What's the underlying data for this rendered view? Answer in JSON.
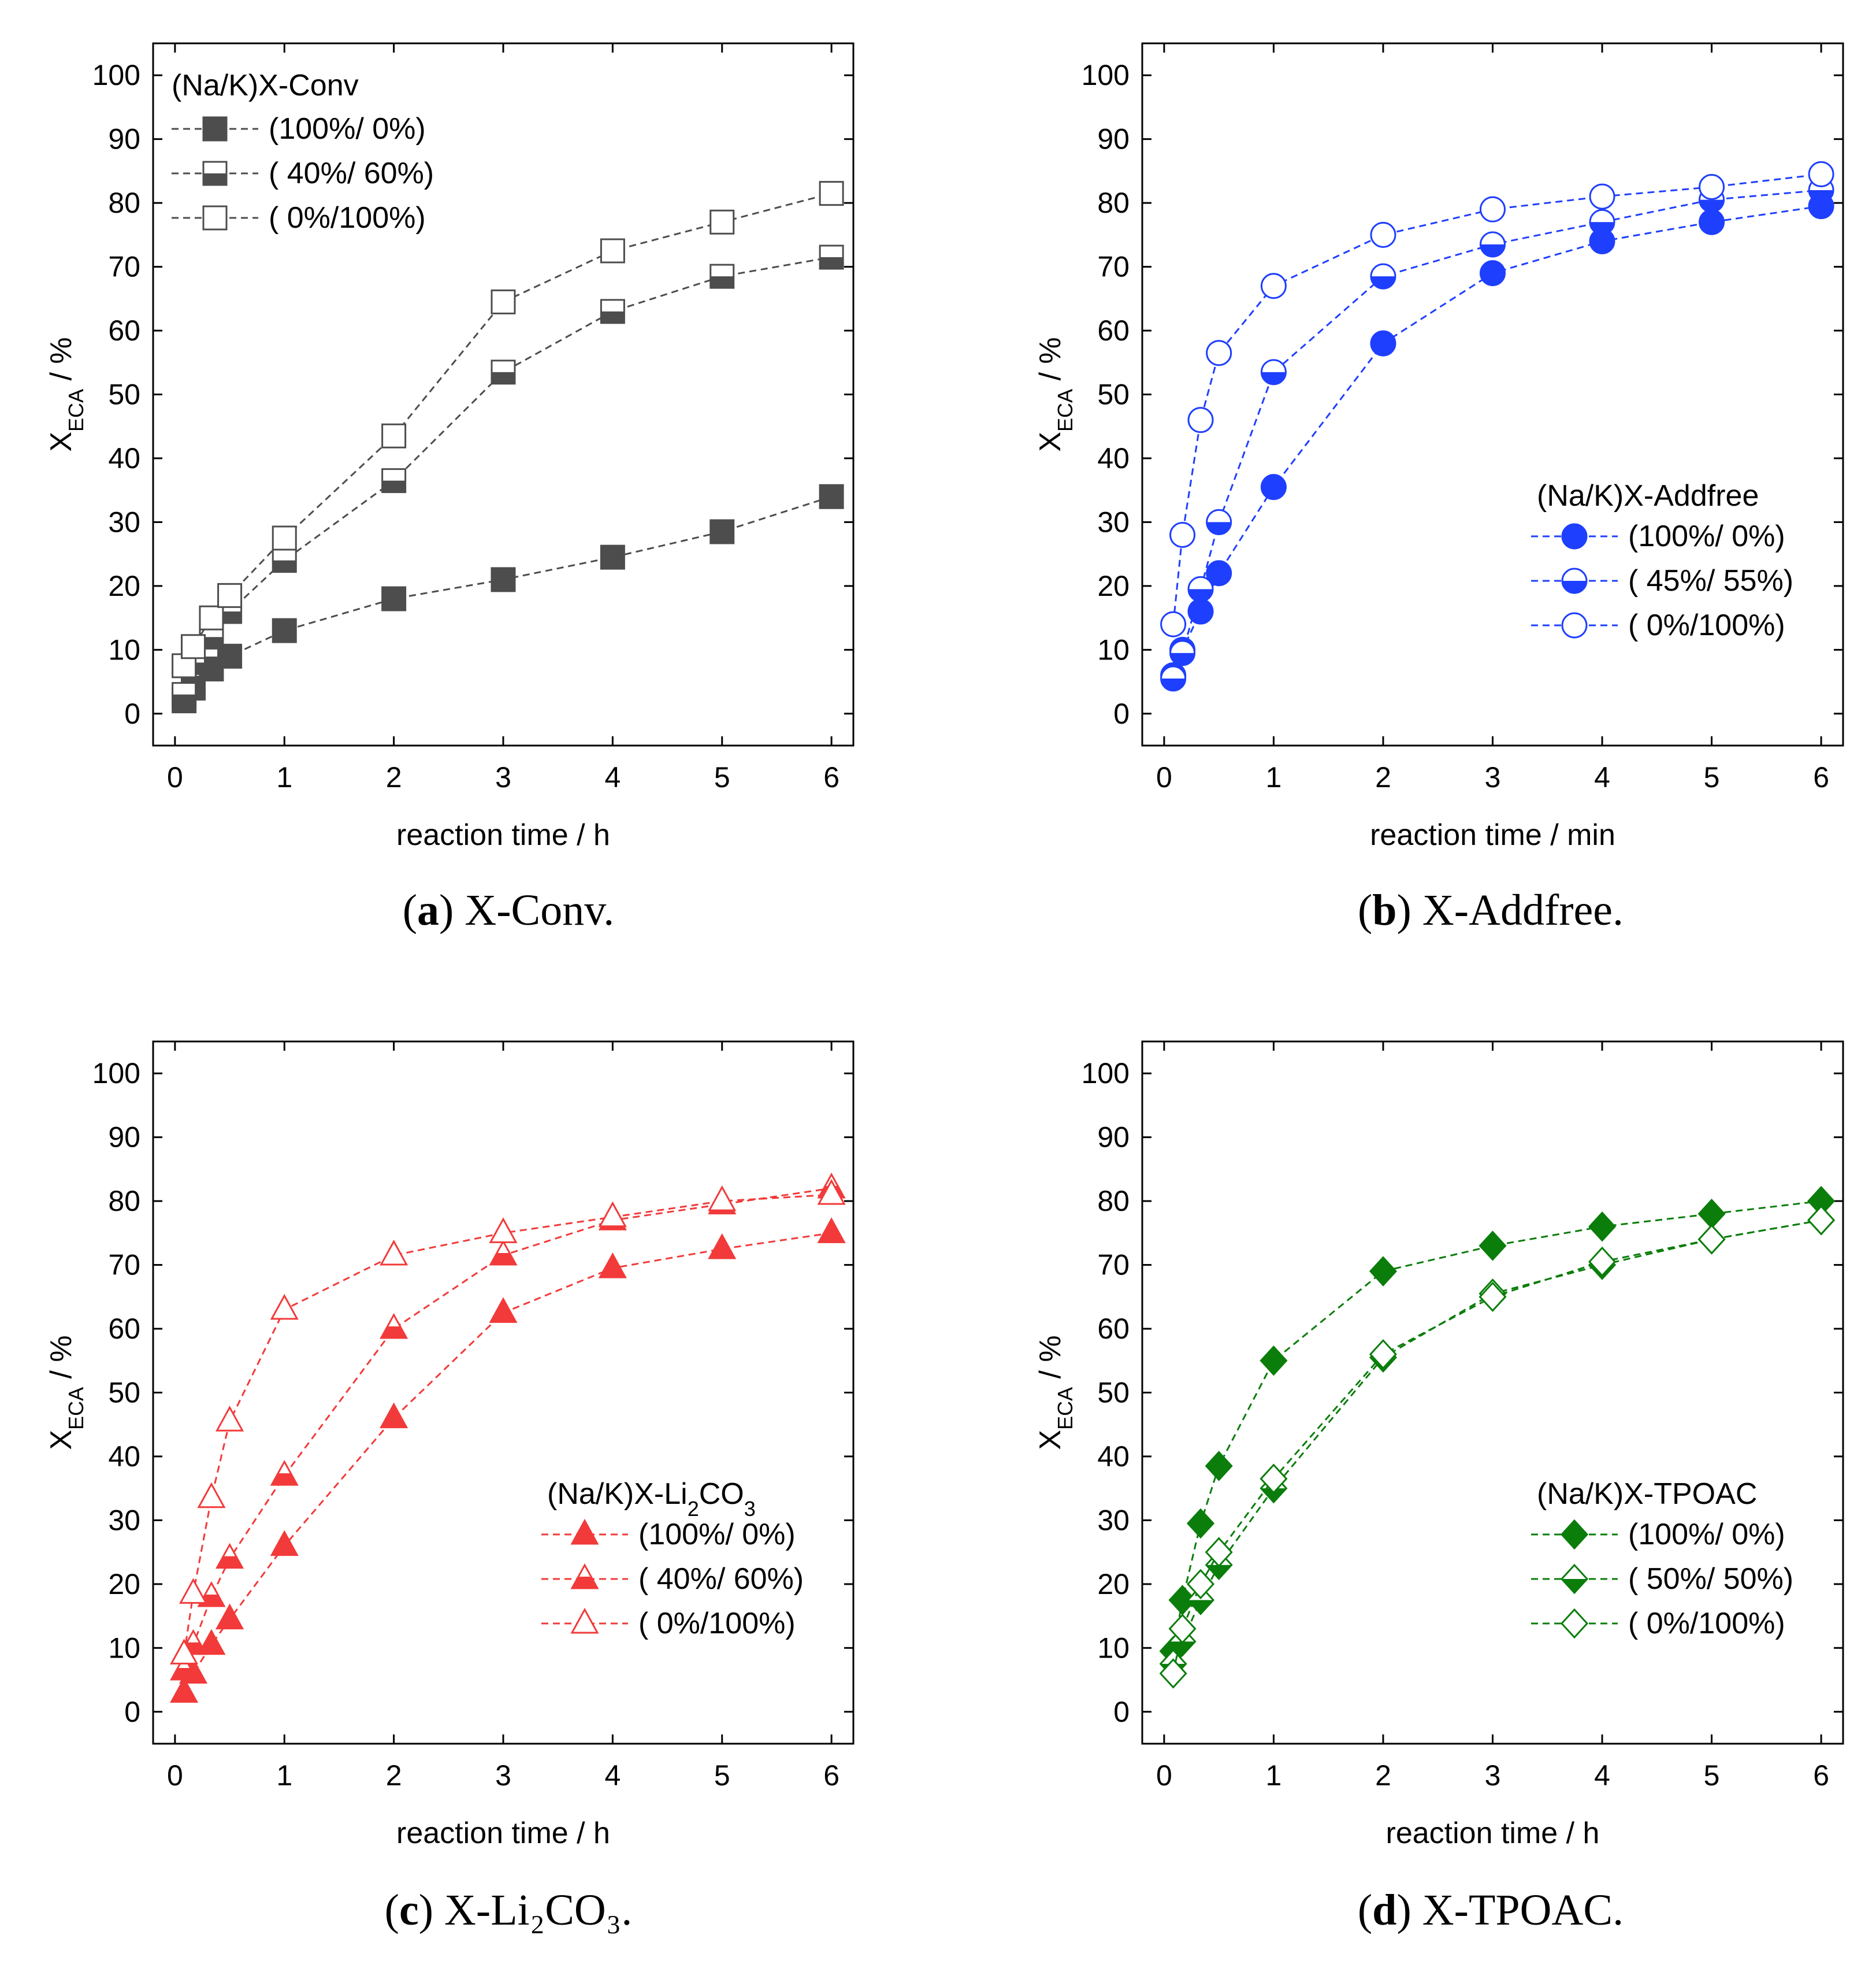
{
  "chart_data": [
    {
      "type": "line",
      "panel_label": "a",
      "caption": "X-Conv.",
      "xlabel": "reaction time / h",
      "ylabel_main": "X",
      "ylabel_sub": "ECA",
      "ylabel_unit": " / %",
      "xlim": [
        -0.2,
        6.2
      ],
      "ylim": [
        -5,
        105
      ],
      "xticks": [
        0,
        1,
        2,
        3,
        4,
        5,
        6
      ],
      "yticks": [
        0,
        10,
        20,
        30,
        40,
        50,
        60,
        70,
        80,
        90,
        100
      ],
      "color": "#4d4d4d",
      "marker": "square",
      "legend": {
        "title": "(Na/K)X-Conv",
        "position": "top-left",
        "labels": [
          "(100%/  0%)",
          "( 40%/ 60%)",
          "(   0%/100%)"
        ]
      },
      "x": [
        0.083,
        0.167,
        0.333,
        0.5,
        1,
        2,
        3,
        4,
        5,
        6
      ],
      "series": [
        {
          "name": "(100%/  0%)",
          "fill": "full",
          "values": [
            2,
            4,
            7,
            9,
            13,
            18,
            21,
            24.5,
            28.5,
            34
          ]
        },
        {
          "name": "( 40%/ 60%)",
          "fill": "half",
          "values": [
            3,
            8,
            12,
            16,
            24,
            36.5,
            53.5,
            63,
            68.5,
            71.5
          ]
        },
        {
          "name": "(   0%/100%)",
          "fill": "none",
          "values": [
            7.5,
            10.5,
            15,
            18.5,
            27.5,
            43.5,
            64.5,
            72.5,
            77,
            81.5
          ]
        }
      ]
    },
    {
      "type": "line",
      "panel_label": "b",
      "caption": "X-Addfree.",
      "xlabel": "reaction time / min",
      "ylabel_main": "X",
      "ylabel_sub": "ECA",
      "ylabel_unit": " / %",
      "xlim": [
        -0.2,
        6.2
      ],
      "ylim": [
        -5,
        105
      ],
      "xticks": [
        0,
        1,
        2,
        3,
        4,
        5,
        6
      ],
      "yticks": [
        0,
        10,
        20,
        30,
        40,
        50,
        60,
        70,
        80,
        90,
        100
      ],
      "color": "#1f3fff",
      "marker": "circle",
      "legend": {
        "title": "(Na/K)X-Addfree",
        "position": "bottom-right",
        "labels": [
          "(100%/  0%)",
          "( 45%/ 55%)",
          "(   0%/100%)"
        ]
      },
      "x": [
        0.083,
        0.167,
        0.333,
        0.5,
        1,
        2,
        3,
        4,
        5,
        6
      ],
      "series": [
        {
          "name": "(100%/  0%)",
          "fill": "full",
          "values": [
            6,
            10,
            16,
            22,
            35.5,
            58,
            69,
            74,
            77,
            79.5
          ]
        },
        {
          "name": "( 45%/ 55%)",
          "fill": "half",
          "values": [
            5.5,
            9.5,
            19.5,
            30,
            53.5,
            68.5,
            73.5,
            77,
            80.5,
            82
          ]
        },
        {
          "name": "(   0%/100%)",
          "fill": "none",
          "values": [
            14,
            28,
            46,
            56.5,
            67,
            75,
            79,
            81,
            82.5,
            84.5
          ]
        }
      ]
    },
    {
      "type": "line",
      "panel_label": "c",
      "caption": "X-Li₂CO₃.",
      "xlabel": "reaction time / h",
      "ylabel_main": "X",
      "ylabel_sub": "ECA",
      "ylabel_unit": " / %",
      "xlim": [
        -0.2,
        6.2
      ],
      "ylim": [
        -5,
        105
      ],
      "xticks": [
        0,
        1,
        2,
        3,
        4,
        5,
        6
      ],
      "yticks": [
        0,
        10,
        20,
        30,
        40,
        50,
        60,
        70,
        80,
        90,
        100
      ],
      "color": "#f23a3a",
      "marker": "triangle",
      "legend": {
        "title_pre": "(Na/K)X-Li",
        "title_sub1": "2",
        "title_mid": "CO",
        "title_sub2": "3",
        "position": "bottom-right",
        "labels": [
          "(100%/  0%)",
          "( 40%/ 60%)",
          "(   0%/100%)"
        ]
      },
      "x": [
        0.083,
        0.167,
        0.333,
        0.5,
        1,
        2,
        3,
        4,
        5,
        6
      ],
      "series": [
        {
          "name": "(100%/  0%)",
          "fill": "full",
          "values": [
            3,
            6,
            10.5,
            14.5,
            26,
            46,
            62.5,
            69.5,
            72.5,
            75
          ]
        },
        {
          "name": "( 40%/ 60%)",
          "fill": "half",
          "values": [
            6.5,
            10.5,
            18,
            24,
            37,
            60,
            71.5,
            77,
            79.5,
            82
          ]
        },
        {
          "name": "(   0%/100%)",
          "fill": "none",
          "values": [
            9,
            18.5,
            33.5,
            45.5,
            63,
            71.5,
            75,
            77.5,
            80,
            81
          ]
        }
      ]
    },
    {
      "type": "line",
      "panel_label": "d",
      "caption": "X-TPOAC.",
      "xlabel": "reaction time / h",
      "ylabel_main": "X",
      "ylabel_sub": "ECA",
      "ylabel_unit": " / %",
      "xlim": [
        -0.2,
        6.2
      ],
      "ylim": [
        -5,
        105
      ],
      "xticks": [
        0,
        1,
        2,
        3,
        4,
        5,
        6
      ],
      "yticks": [
        0,
        10,
        20,
        30,
        40,
        50,
        60,
        70,
        80,
        90,
        100
      ],
      "color": "#0a7d0a",
      "marker": "diamond",
      "legend": {
        "title": "(Na/K)X-TPOAC",
        "position": "bottom-right",
        "labels": [
          "(100%/   0%)",
          "( 50%/  50%)",
          "(   0%/100%)"
        ]
      },
      "x": [
        0.083,
        0.167,
        0.333,
        0.5,
        1,
        2,
        3,
        4,
        5,
        6
      ],
      "series": [
        {
          "name": "(100%/   0%)",
          "fill": "full",
          "values": [
            9.5,
            17.5,
            29.5,
            38.5,
            55,
            69,
            73,
            76,
            78,
            80
          ]
        },
        {
          "name": "( 50%/  50%)",
          "fill": "half",
          "values": [
            7.5,
            11,
            17.5,
            23,
            35,
            55.5,
            65.5,
            70,
            74,
            77
          ]
        },
        {
          "name": "(   0%/100%)",
          "fill": "none",
          "values": [
            6,
            13,
            20,
            25,
            36.5,
            56,
            65,
            70.5,
            74,
            77
          ]
        }
      ]
    }
  ]
}
